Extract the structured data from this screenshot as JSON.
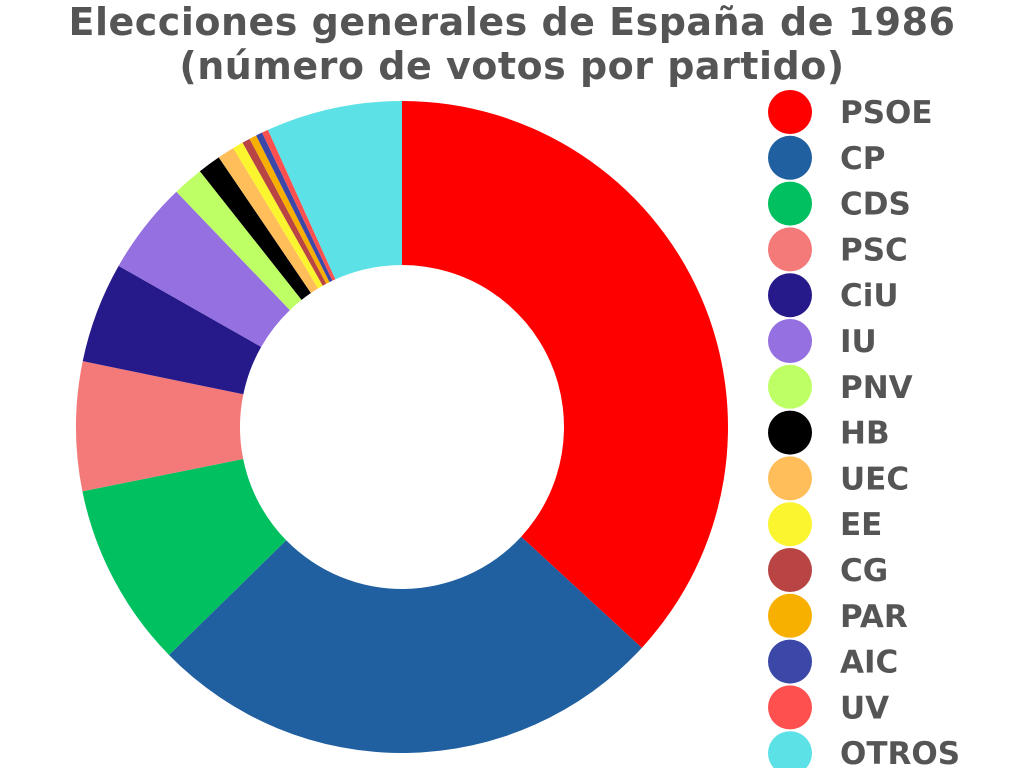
{
  "title": {
    "line1": "Elecciones generales de España de 1986",
    "line2": "(número de votos por partido)"
  },
  "chart_data": {
    "type": "pie",
    "title": "Elecciones generales de España de 1986 (número de votos por partido)",
    "donut": true,
    "legend_position": "right",
    "slices": [
      {
        "name": "PSOE",
        "value": 7485053,
        "color": "#ff0000"
      },
      {
        "name": "CP",
        "value": 5247677,
        "color": "#2060a0"
      },
      {
        "name": "CDS",
        "value": 1861912,
        "color": "#00c060"
      },
      {
        "name": "PSC",
        "value": 1299733,
        "color": "#f47a7a"
      },
      {
        "name": "CiU",
        "value": 1014258,
        "color": "#26198a"
      },
      {
        "name": "IU",
        "value": 935504,
        "color": "#9470e0"
      },
      {
        "name": "PNV",
        "value": 309610,
        "color": "#bfff66"
      },
      {
        "name": "HB",
        "value": 231722,
        "color": "#000000"
      },
      {
        "name": "UEC",
        "value": 170200,
        "color": "#ffbe5a"
      },
      {
        "name": "EE",
        "value": 107053,
        "color": "#faf52e"
      },
      {
        "name": "CG",
        "value": 79972,
        "color": "#b84444"
      },
      {
        "name": "PAR",
        "value": 73004,
        "color": "#f8b000"
      },
      {
        "name": "AIC",
        "value": 65664,
        "color": "#3c48a8"
      },
      {
        "name": "UV",
        "value": 64403,
        "color": "#ff5050"
      },
      {
        "name": "OTROS",
        "value": 1370000,
        "color": "#5ce1e6"
      }
    ]
  }
}
